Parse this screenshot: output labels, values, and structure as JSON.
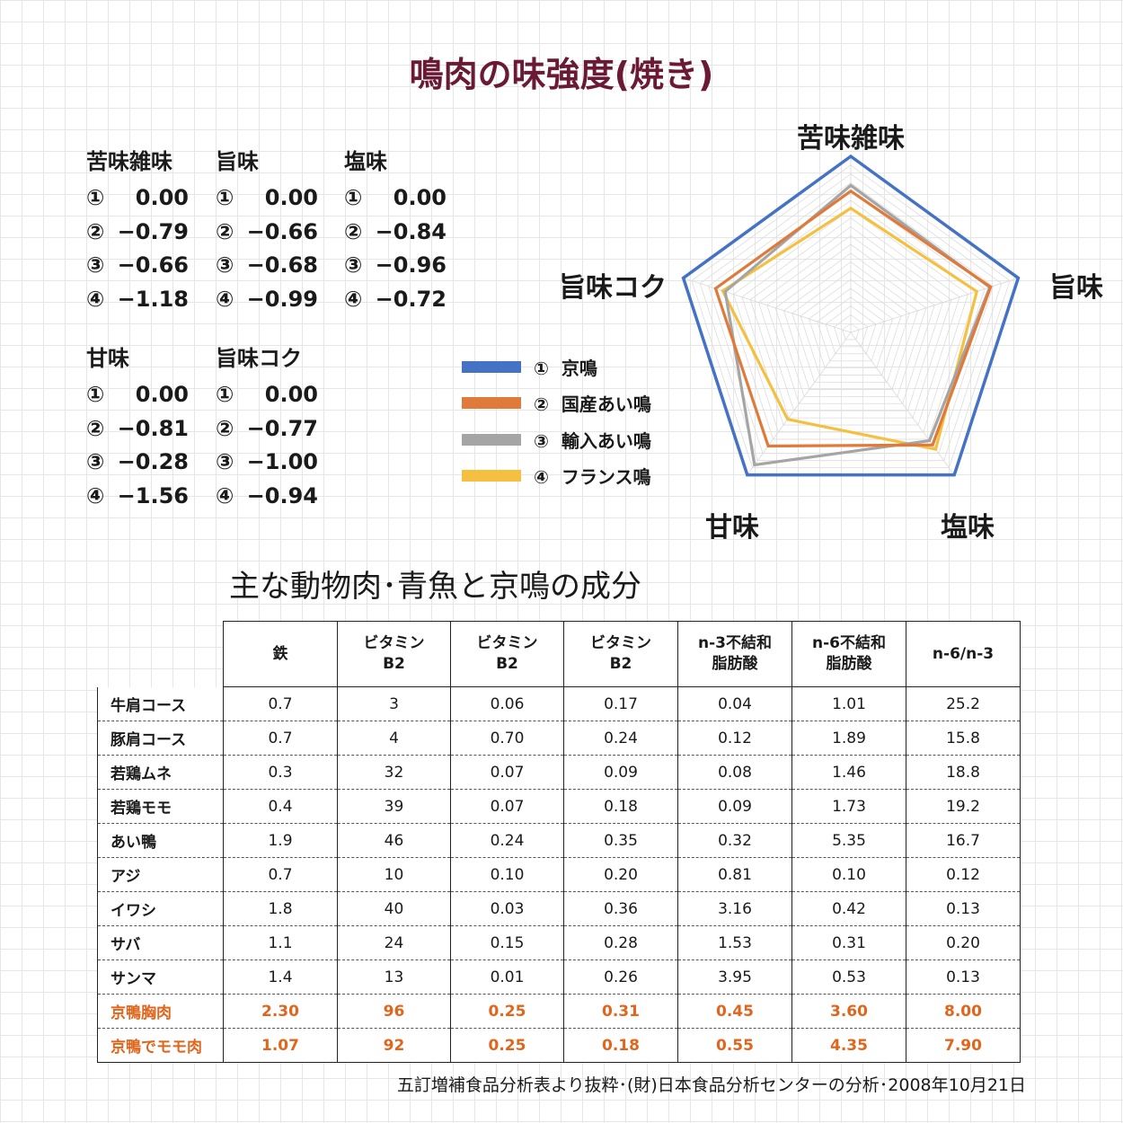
{
  "title": "鳴肉の味強度(焼き)",
  "taste_blocks": [
    {
      "name": "苦味雑味",
      "values": [
        {
          "n": "①",
          "v": "0.00"
        },
        {
          "n": "②",
          "v": "−0.79"
        },
        {
          "n": "③",
          "v": "−0.66"
        },
        {
          "n": "④",
          "v": "−1.18"
        }
      ]
    },
    {
      "name": "旨味",
      "values": [
        {
          "n": "①",
          "v": "0.00"
        },
        {
          "n": "②",
          "v": "−0.66"
        },
        {
          "n": "③",
          "v": "−0.68"
        },
        {
          "n": "④",
          "v": "−0.99"
        }
      ]
    },
    {
      "name": "塩味",
      "values": [
        {
          "n": "①",
          "v": "0.00"
        },
        {
          "n": "②",
          "v": "−0.84"
        },
        {
          "n": "③",
          "v": "−0.96"
        },
        {
          "n": "④",
          "v": "−0.72"
        }
      ]
    },
    {
      "name": "甘味",
      "values": [
        {
          "n": "①",
          "v": "0.00"
        },
        {
          "n": "②",
          "v": "−0.81"
        },
        {
          "n": "③",
          "v": "−0.28"
        },
        {
          "n": "④",
          "v": "−1.56"
        }
      ]
    },
    {
      "name": "旨味コク",
      "values": [
        {
          "n": "①",
          "v": "0.00"
        },
        {
          "n": "②",
          "v": "−0.77"
        },
        {
          "n": "③",
          "v": "−1.00"
        },
        {
          "n": "④",
          "v": "−0.94"
        }
      ]
    }
  ],
  "legend": [
    {
      "label": "①  京鳴",
      "color": "#4472c4"
    },
    {
      "label": "②  国産あい鳴",
      "color": "#e07a3a"
    },
    {
      "label": "③  輸入あい鳴",
      "color": "#a5a5a5"
    },
    {
      "label": "④  フランス鳴",
      "color": "#f5c040"
    }
  ],
  "chart_data": [
    {
      "type": "radar",
      "title": "鳴肉の味強度(焼き)",
      "axes": [
        "苦味雑味",
        "旨味",
        "塩味",
        "甘味",
        "旨味コク"
      ],
      "rlim": [
        -4,
        0
      ],
      "grid": true,
      "series": [
        {
          "name": "①  京鳴",
          "values": [
            0.0,
            0.0,
            0.0,
            0.0,
            0.0
          ],
          "color": "#4472c4"
        },
        {
          "name": "②  国産あい鳴",
          "values": [
            -0.79,
            -0.66,
            -0.84,
            -0.81,
            -0.77
          ],
          "color": "#e07a3a"
        },
        {
          "name": "③  輸入あい鳴",
          "values": [
            -0.66,
            -0.68,
            -0.96,
            -0.28,
            -1.0
          ],
          "color": "#a5a5a5"
        },
        {
          "name": "④  フランス鳴",
          "values": [
            -1.18,
            -0.99,
            -0.72,
            -1.56,
            -0.94
          ],
          "color": "#f5c040"
        }
      ]
    },
    {
      "type": "table",
      "title": "主な動物肉･青魚と京鳴の成分",
      "columns": [
        "鉄",
        "ビタミン B2",
        "ビタミン B2",
        "ビタミン B2",
        "n-3不結和 脂肪酸",
        "n-6不結和 脂肪酸",
        "n-6/n-3"
      ],
      "rows": [
        {
          "name": "牛肩コース",
          "values": [
            "0.7",
            "3",
            "0.06",
            "0.17",
            "0.04",
            "1.01",
            "25.2"
          ]
        },
        {
          "name": "豚肩コース",
          "values": [
            "0.7",
            "4",
            "0.70",
            "0.24",
            "0.12",
            "1.89",
            "15.8"
          ]
        },
        {
          "name": "若鶏ムネ",
          "values": [
            "0.3",
            "32",
            "0.07",
            "0.09",
            "0.08",
            "1.46",
            "18.8"
          ]
        },
        {
          "name": "若鶏モモ",
          "values": [
            "0.4",
            "39",
            "0.07",
            "0.18",
            "0.09",
            "1.73",
            "19.2"
          ]
        },
        {
          "name": "あい鴨",
          "values": [
            "1.9",
            "46",
            "0.24",
            "0.35",
            "0.32",
            "5.35",
            "16.7"
          ]
        },
        {
          "name": "アジ",
          "values": [
            "0.7",
            "10",
            "0.10",
            "0.20",
            "0.81",
            "0.10",
            "0.12"
          ]
        },
        {
          "name": "イワシ",
          "values": [
            "1.8",
            "40",
            "0.03",
            "0.36",
            "3.16",
            "0.42",
            "0.13"
          ]
        },
        {
          "name": "サバ",
          "values": [
            "1.1",
            "24",
            "0.15",
            "0.28",
            "1.53",
            "0.31",
            "0.20"
          ]
        },
        {
          "name": "サンマ",
          "values": [
            "1.4",
            "13",
            "0.01",
            "0.26",
            "3.95",
            "0.53",
            "0.13"
          ]
        },
        {
          "name": "京鴨胸肉",
          "values": [
            "2.30",
            "96",
            "0.25",
            "0.31",
            "0.45",
            "3.60",
            "8.00"
          ],
          "highlight": true
        },
        {
          "name": "京鴨でモモ肉",
          "values": [
            "1.07",
            "92",
            "0.25",
            "0.18",
            "0.55",
            "4.35",
            "7.90"
          ],
          "highlight": true
        }
      ]
    }
  ],
  "table_headers": [
    [
      "鉄"
    ],
    [
      "ビタミン",
      "B2"
    ],
    [
      "ビタミン",
      "B2"
    ],
    [
      "ビタミン",
      "B2"
    ],
    [
      "n-3不結和",
      "脂肪酸"
    ],
    [
      "n-6不結和",
      "脂肪酸"
    ],
    [
      "n-6/n-3"
    ]
  ],
  "source": "五訂増補食品分析表より抜粋･(財)日本食品分析センターの分析･2008年10月21日",
  "highlight_color": "#e0651d",
  "title_color": "#6b1a35"
}
